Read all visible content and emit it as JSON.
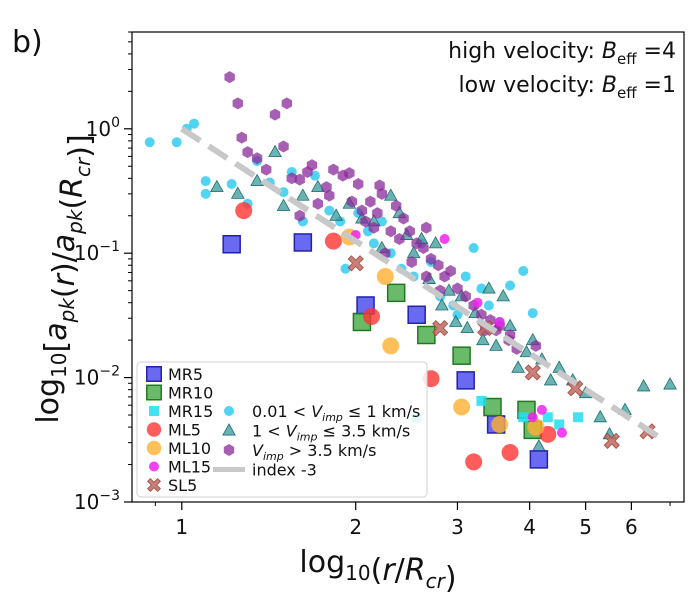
{
  "panel_label": "b)",
  "colors": {
    "MR": "#4444ee",
    "MR_edge": "#2222aa",
    "MRg": "#44aa44",
    "MRg_edge": "#227722",
    "cyan": "#22ddee",
    "ML5": "#ff3333",
    "ML10": "#ffb030",
    "ML15": "#ee22ee",
    "SL": "#c06a60",
    "SL_edge": "#a04a40",
    "v_low": "#33ccee",
    "v_mid": "#3a9a9a",
    "v_high": "#8a2a9a",
    "fit": "#c8c8c8"
  },
  "chart_data": {
    "type": "scatter",
    "xlabel": "log10(r/R_cr)",
    "ylabel": "log10[a_pk(r)/a_pk(R_cr)]",
    "xscale": "log",
    "yscale": "log",
    "xlim": [
      0.82,
      7.4
    ],
    "ylim": [
      0.001,
      6
    ],
    "xticks": [
      {
        "value": 1,
        "label": "1"
      },
      {
        "value": 2,
        "label": "2"
      },
      {
        "value": 3,
        "label": "3"
      },
      {
        "value": 4,
        "label": "4"
      },
      {
        "value": 5,
        "label": "5"
      },
      {
        "value": 6,
        "label": "6"
      }
    ],
    "yticks": [
      {
        "value": 1,
        "base": "10",
        "exp": "0"
      },
      {
        "value": 0.1,
        "base": "10",
        "exp": "−1"
      },
      {
        "value": 0.01,
        "base": "10",
        "exp": "−2"
      },
      {
        "value": 0.001,
        "base": "10",
        "exp": "−3"
      }
    ],
    "annotations": [
      {
        "prefix": "high velocity: ",
        "symbol": "B",
        "sub": "eff",
        "suffix": " =4"
      },
      {
        "prefix": "low velocity: ",
        "symbol": "B",
        "sub": "eff",
        "suffix": " =1"
      }
    ],
    "fit_line": {
      "name": "index -3",
      "index": -3,
      "x_range": [
        1.0,
        6.8
      ],
      "y_at_1": 1.0
    },
    "series": [
      {
        "name": "MR5",
        "marker": "square-large",
        "color_key": "MR",
        "points": [
          [
            1.22,
            0.118
          ],
          [
            1.62,
            0.122
          ],
          [
            2.08,
            0.038
          ],
          [
            2.55,
            0.032
          ],
          [
            3.1,
            0.0095
          ],
          [
            3.5,
            0.0042
          ],
          [
            4.15,
            0.0022
          ]
        ]
      },
      {
        "name": "MR10",
        "marker": "square-large",
        "color_key": "MRg",
        "points": [
          [
            2.05,
            0.028
          ],
          [
            2.35,
            0.048
          ],
          [
            2.65,
            0.022
          ],
          [
            3.05,
            0.015
          ],
          [
            3.45,
            0.0058
          ],
          [
            3.95,
            0.0055
          ],
          [
            4.05,
            0.0038
          ]
        ]
      },
      {
        "name": "MR15",
        "marker": "square-small",
        "color_key": "cyan",
        "points": [
          [
            2.55,
            0.0048
          ],
          [
            3.3,
            0.0065
          ],
          [
            3.9,
            0.0048
          ],
          [
            4.3,
            0.0048
          ],
          [
            4.5,
            0.0042
          ],
          [
            4.85,
            0.0048
          ]
        ]
      },
      {
        "name": "ML5",
        "marker": "circle-large",
        "color_key": "ML5",
        "points": [
          [
            1.28,
            0.22
          ],
          [
            1.83,
            0.125
          ],
          [
            2.13,
            0.031
          ],
          [
            2.7,
            0.0098
          ],
          [
            3.2,
            0.0021
          ],
          [
            3.7,
            0.0025
          ],
          [
            4.3,
            0.0035
          ]
        ]
      },
      {
        "name": "ML10",
        "marker": "circle-large",
        "color_key": "ML10",
        "points": [
          [
            1.95,
            0.135
          ],
          [
            2.25,
            0.065
          ],
          [
            2.3,
            0.018
          ],
          [
            3.05,
            0.0058
          ],
          [
            3.55,
            0.0042
          ],
          [
            4.1,
            0.004
          ]
        ]
      },
      {
        "name": "ML15",
        "marker": "circle-small",
        "color_key": "ML15",
        "points": [
          [
            2.0,
            0.14
          ],
          [
            2.85,
            0.13
          ],
          [
            3.25,
            0.04
          ],
          [
            3.55,
            0.028
          ],
          [
            4.05,
            0.0048
          ],
          [
            4.2,
            0.0055
          ],
          [
            4.55,
            0.0036
          ]
        ]
      },
      {
        "name": "SL5",
        "marker": "x-large",
        "color_key": "SL",
        "points": [
          [
            2.0,
            0.083
          ],
          [
            2.8,
            0.025
          ],
          [
            3.35,
            0.025
          ],
          [
            4.05,
            0.011
          ],
          [
            4.8,
            0.0082
          ],
          [
            5.55,
            0.0031
          ],
          [
            6.4,
            0.0037
          ]
        ]
      },
      {
        "name": "0.01 < V_imp ≤ 1 km/s",
        "marker": "circle-small",
        "color_key": "v_low",
        "points": [
          [
            0.88,
            0.78
          ],
          [
            0.98,
            0.78
          ],
          [
            1.02,
            1.0
          ],
          [
            1.05,
            1.1
          ],
          [
            1.1,
            0.38
          ],
          [
            1.1,
            0.3
          ],
          [
            1.22,
            0.36
          ],
          [
            1.3,
            0.25
          ],
          [
            1.35,
            0.55
          ],
          [
            1.42,
            0.37
          ],
          [
            1.5,
            0.31
          ],
          [
            1.55,
            0.45
          ],
          [
            1.62,
            0.18
          ],
          [
            1.7,
            0.42
          ],
          [
            1.8,
            0.22
          ],
          [
            1.88,
            0.18
          ],
          [
            1.92,
            0.075
          ],
          [
            2.02,
            0.21
          ],
          [
            2.1,
            0.15
          ],
          [
            2.15,
            0.12
          ],
          [
            2.22,
            0.18
          ],
          [
            2.3,
            0.1
          ],
          [
            2.4,
            0.075
          ],
          [
            2.52,
            0.065
          ],
          [
            2.6,
            0.12
          ],
          [
            2.7,
            0.085
          ],
          [
            2.8,
            0.045
          ],
          [
            2.95,
            0.038
          ],
          [
            3.0,
            0.032
          ],
          [
            3.1,
            0.065
          ],
          [
            3.2,
            0.11
          ],
          [
            3.3,
            0.052
          ],
          [
            3.4,
            0.038
          ],
          [
            3.55,
            0.028
          ],
          [
            3.7,
            0.055
          ],
          [
            3.9,
            0.072
          ],
          [
            4.05,
            0.033
          ]
        ]
      },
      {
        "name": "1 < V_imp ≤ 3.5 km/s",
        "marker": "triangle",
        "color_key": "v_mid",
        "points": [
          [
            1.15,
            0.34
          ],
          [
            1.25,
            0.3
          ],
          [
            1.35,
            0.38
          ],
          [
            1.45,
            0.65
          ],
          [
            1.5,
            0.24
          ],
          [
            1.62,
            0.29
          ],
          [
            1.72,
            0.34
          ],
          [
            1.85,
            0.2
          ],
          [
            1.95,
            0.25
          ],
          [
            2.05,
            0.19
          ],
          [
            2.15,
            0.18
          ],
          [
            2.22,
            0.11
          ],
          [
            2.3,
            0.29
          ],
          [
            2.38,
            0.21
          ],
          [
            2.45,
            0.14
          ],
          [
            2.52,
            0.1
          ],
          [
            2.6,
            0.13
          ],
          [
            2.68,
            0.062
          ],
          [
            2.75,
            0.12
          ],
          [
            2.82,
            0.038
          ],
          [
            2.9,
            0.05
          ],
          [
            2.98,
            0.028
          ],
          [
            3.05,
            0.045
          ],
          [
            3.12,
            0.025
          ],
          [
            3.22,
            0.033
          ],
          [
            3.32,
            0.02
          ],
          [
            3.4,
            0.052
          ],
          [
            3.5,
            0.018
          ],
          [
            3.6,
            0.045
          ],
          [
            3.7,
            0.026
          ],
          [
            3.82,
            0.012
          ],
          [
            3.95,
            0.016
          ],
          [
            4.05,
            0.02
          ],
          [
            4.2,
            0.014
          ],
          [
            4.35,
            0.0095
          ],
          [
            4.5,
            0.012
          ],
          [
            4.75,
            0.0095
          ],
          [
            5.0,
            0.0075
          ],
          [
            5.3,
            0.0048
          ],
          [
            5.5,
            0.0035
          ],
          [
            5.85,
            0.0055
          ],
          [
            6.3,
            0.0085
          ],
          [
            7.0,
            0.0088
          ],
          [
            4.15,
            0.0028
          ]
        ]
      },
      {
        "name": "V_imp > 3.5 km/s",
        "marker": "hexagon",
        "color_key": "v_high",
        "points": [
          [
            1.27,
            0.85
          ],
          [
            1.3,
            0.65
          ],
          [
            1.35,
            0.58
          ],
          [
            1.4,
            0.47
          ],
          [
            1.5,
            0.72
          ],
          [
            1.55,
            0.4
          ],
          [
            1.6,
            0.39
          ],
          [
            1.65,
            0.45
          ],
          [
            1.72,
            0.25
          ],
          [
            1.78,
            0.34
          ],
          [
            1.83,
            0.47
          ],
          [
            1.9,
            0.42
          ],
          [
            1.97,
            0.26
          ],
          [
            2.02,
            0.36
          ],
          [
            2.08,
            0.18
          ],
          [
            2.12,
            0.26
          ],
          [
            2.18,
            0.21
          ],
          [
            2.22,
            0.3
          ],
          [
            2.3,
            0.15
          ],
          [
            2.35,
            0.24
          ],
          [
            2.42,
            0.19
          ],
          [
            2.48,
            0.15
          ],
          [
            2.55,
            0.12
          ],
          [
            2.62,
            0.11
          ],
          [
            2.7,
            0.09
          ],
          [
            2.78,
            0.08
          ],
          [
            2.85,
            0.065
          ],
          [
            2.92,
            0.072
          ],
          [
            3.0,
            0.052
          ],
          [
            3.1,
            0.045
          ],
          [
            3.2,
            0.038
          ],
          [
            3.3,
            0.032
          ],
          [
            3.42,
            0.029
          ],
          [
            3.55,
            0.026
          ],
          [
            3.68,
            0.02
          ],
          [
            3.8,
            0.017
          ],
          [
            1.21,
            2.6
          ],
          [
            1.25,
            1.6
          ],
          [
            1.45,
            1.3
          ],
          [
            1.52,
            1.6
          ],
          [
            1.6,
            0.2
          ],
          [
            1.68,
            0.51
          ],
          [
            1.8,
            0.29
          ],
          [
            1.95,
            0.44
          ],
          [
            2.05,
            0.22
          ],
          [
            2.15,
            0.16
          ],
          [
            2.25,
            0.1
          ],
          [
            2.38,
            0.13
          ],
          [
            2.5,
            0.085
          ],
          [
            2.65,
            0.065
          ],
          [
            2.8,
            0.05
          ],
          [
            3.35,
            0.024
          ],
          [
            3.5,
            0.024
          ],
          [
            3.7,
            0.022
          ],
          [
            4.1,
            0.018
          ],
          [
            2.2,
            0.35
          ],
          [
            2.65,
            0.16
          ]
        ]
      }
    ]
  },
  "legend": [
    {
      "key": "MR5",
      "marker": "square-large",
      "color_key": "MR",
      "label": "MR5"
    },
    {
      "key": "MR10",
      "marker": "square-large",
      "color_key": "MRg",
      "label": "MR10"
    },
    {
      "key": "MR15",
      "marker": "square-small",
      "color_key": "cyan",
      "label": "MR15"
    },
    {
      "key": "ML5",
      "marker": "circle-large",
      "color_key": "ML5",
      "label": "ML5"
    },
    {
      "key": "ML10",
      "marker": "circle-large",
      "color_key": "ML10",
      "label": "ML10"
    },
    {
      "key": "ML15",
      "marker": "circle-small",
      "color_key": "ML15",
      "label": "ML15"
    },
    {
      "key": "SL5",
      "marker": "x-large",
      "color_key": "SL",
      "label": "SL5"
    },
    {
      "key": "vlow",
      "marker": "circle-small",
      "color_key": "v_low",
      "label": "0.01 < V_imp ≤  1 km/s"
    },
    {
      "key": "vmid",
      "marker": "triangle",
      "color_key": "v_mid",
      "label": "1 < V_imp ≤  3.5 km/s"
    },
    {
      "key": "vhigh",
      "marker": "hexagon",
      "color_key": "v_high",
      "label": "V_imp >  3.5 km/s"
    },
    {
      "key": "fit",
      "marker": "line",
      "color_key": "fit",
      "label": "index -3"
    }
  ]
}
